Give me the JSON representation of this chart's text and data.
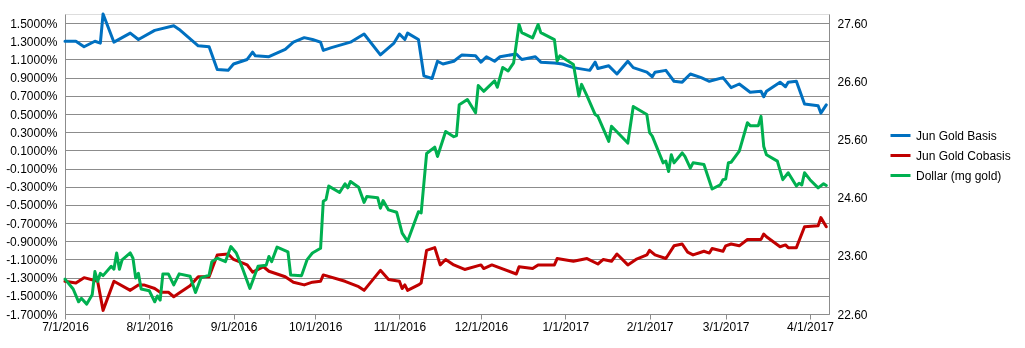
{
  "chart_data": {
    "type": "line",
    "legend": "right",
    "grid": "y",
    "xlim": [
      "2016-07-01",
      "2017-04-08"
    ],
    "xticks": [
      {
        "value": "2016-07-01",
        "label": "7/1/2016"
      },
      {
        "value": "2016-08-01",
        "label": "8/1/2016"
      },
      {
        "value": "2016-09-01",
        "label": "9/1/2016"
      },
      {
        "value": "2016-10-01",
        "label": "10/1/2016"
      },
      {
        "value": "2016-11-01",
        "label": "11/1/2016"
      },
      {
        "value": "2016-12-01",
        "label": "12/1/2016"
      },
      {
        "value": "2017-01-01",
        "label": "1/1/2017"
      },
      {
        "value": "2017-02-01",
        "label": "2/1/2017"
      },
      {
        "value": "2017-03-01",
        "label": "3/1/2017"
      },
      {
        "value": "2017-04-01",
        "label": "4/1/2017"
      }
    ],
    "ylim": [
      -1.7,
      1.6
    ],
    "yticks": [
      {
        "value": -1.7,
        "label": "-1.7000%"
      },
      {
        "value": -1.5,
        "label": "-1.5000%"
      },
      {
        "value": -1.3,
        "label": "-1.3000%"
      },
      {
        "value": -1.1,
        "label": "-1.1000%"
      },
      {
        "value": -0.9,
        "label": "-0.9000%"
      },
      {
        "value": -0.7,
        "label": "-0.7000%"
      },
      {
        "value": -0.5,
        "label": "-0.5000%"
      },
      {
        "value": -0.3,
        "label": "-0.3000%"
      },
      {
        "value": -0.1,
        "label": "-0.1000%"
      },
      {
        "value": 0.1,
        "label": "0.1000%"
      },
      {
        "value": 0.3,
        "label": "0.3000%"
      },
      {
        "value": 0.5,
        "label": "0.5000%"
      },
      {
        "value": 0.7,
        "label": "0.7000%"
      },
      {
        "value": 0.9,
        "label": "0.9000%"
      },
      {
        "value": 1.1,
        "label": "1.1000%"
      },
      {
        "value": 1.3,
        "label": "1.3000%"
      },
      {
        "value": 1.5,
        "label": "1.5000%"
      }
    ],
    "y2lim": [
      22.6,
      27.76
    ],
    "y2ticks": [
      {
        "value": 22.6,
        "label": "22.60"
      },
      {
        "value": 23.6,
        "label": "23.60"
      },
      {
        "value": 24.6,
        "label": "24.60"
      },
      {
        "value": 25.6,
        "label": "25.60"
      },
      {
        "value": 26.6,
        "label": "26.60"
      },
      {
        "value": 27.6,
        "label": "27.60"
      }
    ],
    "series": [
      {
        "name": "Jun Gold Basis",
        "color": "#0070c0",
        "axis": "y",
        "x": [
          "2016-07-01",
          "2016-07-05",
          "2016-07-08",
          "2016-07-12",
          "2016-07-14",
          "2016-07-15",
          "2016-07-19",
          "2016-07-25",
          "2016-07-28",
          "2016-08-03",
          "2016-08-10",
          "2016-08-12",
          "2016-08-19",
          "2016-08-23",
          "2016-08-26",
          "2016-08-30",
          "2016-09-01",
          "2016-09-06",
          "2016-09-08",
          "2016-09-09",
          "2016-09-14",
          "2016-09-20",
          "2016-09-23",
          "2016-09-27",
          "2016-09-30",
          "2016-10-03",
          "2016-10-04",
          "2016-10-07",
          "2016-10-14",
          "2016-10-19",
          "2016-10-25",
          "2016-10-30",
          "2016-11-01",
          "2016-11-03",
          "2016-11-04",
          "2016-11-08",
          "2016-11-10",
          "2016-11-13",
          "2016-11-15",
          "2016-11-17",
          "2016-11-21",
          "2016-11-24",
          "2016-11-29",
          "2016-12-01",
          "2016-12-03",
          "2016-12-06",
          "2016-12-08",
          "2016-12-14",
          "2016-12-16",
          "2016-12-21",
          "2016-12-23",
          "2016-12-28",
          "2016-12-31",
          "2017-01-04",
          "2017-01-10",
          "2017-01-12",
          "2017-01-13",
          "2017-01-17",
          "2017-01-20",
          "2017-01-24",
          "2017-01-26",
          "2017-01-31",
          "2017-02-02",
          "2017-02-03",
          "2017-02-07",
          "2017-02-10",
          "2017-02-13",
          "2017-02-16",
          "2017-02-20",
          "2017-02-23",
          "2017-02-28",
          "2017-03-03",
          "2017-03-06",
          "2017-03-10",
          "2017-03-14",
          "2017-03-15",
          "2017-03-16",
          "2017-03-21",
          "2017-03-23",
          "2017-03-24",
          "2017-03-27",
          "2017-03-30",
          "2017-04-04",
          "2017-04-05",
          "2017-04-07"
        ],
        "values": [
          1.3,
          1.3,
          1.24,
          1.3,
          1.28,
          1.6,
          1.29,
          1.39,
          1.32,
          1.42,
          1.47,
          1.43,
          1.25,
          1.24,
          0.99,
          0.98,
          1.05,
          1.1,
          1.18,
          1.14,
          1.13,
          1.21,
          1.29,
          1.34,
          1.32,
          1.29,
          1.2,
          1.23,
          1.29,
          1.38,
          1.15,
          1.28,
          1.38,
          1.32,
          1.39,
          1.32,
          0.92,
          0.89,
          1.08,
          1.05,
          1.08,
          1.15,
          1.14,
          1.07,
          1.13,
          1.08,
          1.13,
          1.16,
          1.1,
          1.13,
          1.07,
          1.06,
          1.05,
          1.01,
          0.98,
          1.07,
          1.0,
          1.03,
          0.94,
          1.08,
          1.01,
          0.96,
          0.91,
          0.96,
          0.98,
          0.86,
          0.85,
          0.94,
          0.9,
          0.86,
          0.9,
          0.79,
          0.83,
          0.74,
          0.75,
          0.69,
          0.75,
          0.85,
          0.8,
          0.85,
          0.86,
          0.61,
          0.59,
          0.51,
          0.6
        ]
      },
      {
        "name": "Jun Gold Cobasis",
        "color": "#c00000",
        "axis": "y",
        "x": [
          "2016-07-01",
          "2016-07-05",
          "2016-07-08",
          "2016-07-13",
          "2016-07-15",
          "2016-07-19",
          "2016-07-25",
          "2016-07-28",
          "2016-07-30",
          "2016-08-03",
          "2016-08-05",
          "2016-08-08",
          "2016-08-10",
          "2016-08-12",
          "2016-08-16",
          "2016-08-19",
          "2016-08-23",
          "2016-08-26",
          "2016-08-30",
          "2016-09-01",
          "2016-09-06",
          "2016-09-08",
          "2016-09-12",
          "2016-09-14",
          "2016-09-20",
          "2016-09-23",
          "2016-09-27",
          "2016-09-30",
          "2016-10-03",
          "2016-10-04",
          "2016-10-12",
          "2016-10-17",
          "2016-10-19",
          "2016-10-25",
          "2016-10-28",
          "2016-11-01",
          "2016-11-02",
          "2016-11-03",
          "2016-11-04",
          "2016-11-08",
          "2016-11-09",
          "2016-11-11",
          "2016-11-14",
          "2016-11-16",
          "2016-11-18",
          "2016-11-21",
          "2016-11-25",
          "2016-12-01",
          "2016-12-02",
          "2016-12-05",
          "2016-12-14",
          "2016-12-15",
          "2016-12-20",
          "2016-12-22",
          "2016-12-28",
          "2016-12-29",
          "2017-01-04",
          "2017-01-09",
          "2017-01-13",
          "2017-01-15",
          "2017-01-18",
          "2017-01-20",
          "2017-01-24",
          "2017-01-27",
          "2017-01-31",
          "2017-02-01",
          "2017-02-03",
          "2017-02-07",
          "2017-02-10",
          "2017-02-13",
          "2017-02-15",
          "2017-02-17",
          "2017-02-21",
          "2017-02-23",
          "2017-02-24",
          "2017-02-28",
          "2017-03-01",
          "2017-03-03",
          "2017-03-06",
          "2017-03-09",
          "2017-03-14",
          "2017-03-15",
          "2017-03-16",
          "2017-03-21",
          "2017-03-23",
          "2017-03-24",
          "2017-03-27",
          "2017-03-30",
          "2017-04-04",
          "2017-04-05",
          "2017-04-07"
        ],
        "values": [
          -1.34,
          -1.36,
          -1.3,
          -1.34,
          -1.66,
          -1.34,
          -1.44,
          -1.38,
          -1.38,
          -1.42,
          -1.46,
          -1.46,
          -1.51,
          -1.47,
          -1.39,
          -1.29,
          -1.29,
          -1.05,
          -1.04,
          -1.1,
          -1.16,
          -1.24,
          -1.18,
          -1.23,
          -1.29,
          -1.35,
          -1.38,
          -1.35,
          -1.34,
          -1.27,
          -1.34,
          -1.4,
          -1.44,
          -1.22,
          -1.32,
          -1.34,
          -1.42,
          -1.38,
          -1.44,
          -1.38,
          -1.36,
          -1.0,
          -0.97,
          -1.16,
          -1.1,
          -1.16,
          -1.21,
          -1.16,
          -1.2,
          -1.16,
          -1.26,
          -1.18,
          -1.2,
          -1.16,
          -1.16,
          -1.09,
          -1.12,
          -1.09,
          -1.15,
          -1.1,
          -1.12,
          -1.04,
          -1.16,
          -1.1,
          -1.05,
          -1.0,
          -1.05,
          -1.09,
          -0.95,
          -0.93,
          -1.02,
          -1.05,
          -1.01,
          -1.03,
          -0.98,
          -1.01,
          -0.95,
          -0.93,
          -0.95,
          -0.88,
          -0.88,
          -0.82,
          -0.85,
          -0.96,
          -0.94,
          -0.97,
          -0.97,
          -0.74,
          -0.73,
          -0.64,
          -0.74
        ]
      },
      {
        "name": "Dollar (mg gold)",
        "color": "#00b050",
        "axis": "y2",
        "x": [
          "2016-07-01",
          "2016-07-04",
          "2016-07-06",
          "2016-07-07",
          "2016-07-09",
          "2016-07-11",
          "2016-07-12",
          "2016-07-13",
          "2016-07-14",
          "2016-07-15",
          "2016-07-18",
          "2016-07-19",
          "2016-07-20",
          "2016-07-21",
          "2016-07-22",
          "2016-07-25",
          "2016-07-26",
          "2016-07-27",
          "2016-07-28",
          "2016-07-29",
          "2016-08-01",
          "2016-08-03",
          "2016-08-04",
          "2016-08-05",
          "2016-08-06",
          "2016-08-08",
          "2016-08-10",
          "2016-08-12",
          "2016-08-16",
          "2016-08-18",
          "2016-08-20",
          "2016-08-23",
          "2016-08-24",
          "2016-08-26",
          "2016-08-29",
          "2016-08-31",
          "2016-09-02",
          "2016-09-04",
          "2016-09-07",
          "2016-09-10",
          "2016-09-13",
          "2016-09-14",
          "2016-09-15",
          "2016-09-17",
          "2016-09-21",
          "2016-09-22",
          "2016-09-26",
          "2016-09-28",
          "2016-09-30",
          "2016-10-03",
          "2016-10-04",
          "2016-10-05",
          "2016-10-06",
          "2016-10-10",
          "2016-10-12",
          "2016-10-13",
          "2016-10-14",
          "2016-10-17",
          "2016-10-19",
          "2016-10-20",
          "2016-10-24",
          "2016-10-25",
          "2016-10-26",
          "2016-10-28",
          "2016-10-31",
          "2016-11-02",
          "2016-11-04",
          "2016-11-08",
          "2016-11-09",
          "2016-11-11",
          "2016-11-14",
          "2016-11-15",
          "2016-11-18",
          "2016-11-21",
          "2016-11-22",
          "2016-11-23",
          "2016-11-26",
          "2016-11-29",
          "2016-11-30",
          "2016-12-02",
          "2016-12-06",
          "2016-12-07",
          "2016-12-09",
          "2016-12-11",
          "2016-12-13",
          "2016-12-15",
          "2016-12-16",
          "2016-12-20",
          "2016-12-22",
          "2016-12-23",
          "2016-12-28",
          "2016-12-29",
          "2016-12-30",
          "2017-01-04",
          "2017-01-06",
          "2017-01-07",
          "2017-01-09",
          "2017-01-12",
          "2017-01-13",
          "2017-01-17",
          "2017-01-18",
          "2017-01-24",
          "2017-01-26",
          "2017-01-31",
          "2017-02-01",
          "2017-02-02",
          "2017-02-06",
          "2017-02-07",
          "2017-02-08",
          "2017-02-09",
          "2017-02-10",
          "2017-02-13",
          "2017-02-14",
          "2017-02-16",
          "2017-02-17",
          "2017-02-21",
          "2017-02-24",
          "2017-02-27",
          "2017-02-28",
          "2017-03-01",
          "2017-03-02",
          "2017-03-03",
          "2017-03-06",
          "2017-03-09",
          "2017-03-10",
          "2017-03-13",
          "2017-03-14",
          "2017-03-15",
          "2017-03-16",
          "2017-03-20",
          "2017-03-22",
          "2017-03-24",
          "2017-03-27",
          "2017-03-28",
          "2017-03-29",
          "2017-03-30",
          "2017-04-01",
          "2017-04-04",
          "2017-04-06",
          "2017-04-07"
        ],
        "values": [
          23.2,
          23.03,
          22.81,
          22.87,
          22.77,
          22.93,
          23.33,
          23.16,
          23.3,
          23.26,
          23.42,
          23.37,
          23.65,
          23.37,
          23.53,
          23.65,
          23.56,
          23.22,
          23.3,
          23.03,
          23.0,
          22.81,
          22.91,
          22.84,
          23.29,
          23.29,
          23.1,
          23.29,
          23.25,
          22.97,
          23.22,
          23.27,
          23.5,
          23.56,
          23.5,
          23.76,
          23.65,
          23.42,
          23.04,
          23.42,
          23.44,
          23.59,
          23.5,
          23.75,
          23.67,
          23.27,
          23.26,
          23.53,
          23.65,
          23.73,
          24.54,
          24.57,
          24.8,
          24.69,
          24.84,
          24.77,
          24.88,
          24.78,
          24.52,
          24.62,
          24.6,
          24.42,
          24.55,
          24.39,
          24.35,
          23.99,
          23.85,
          24.36,
          24.34,
          25.36,
          25.47,
          25.31,
          25.74,
          25.65,
          25.67,
          26.2,
          26.29,
          26.06,
          26.53,
          26.43,
          26.61,
          26.5,
          26.84,
          26.78,
          26.92,
          27.58,
          27.44,
          27.35,
          27.58,
          27.44,
          27.32,
          26.95,
          27.04,
          26.89,
          26.35,
          26.55,
          26.35,
          26.03,
          26.0,
          25.57,
          25.83,
          25.54,
          26.17,
          26.03,
          25.72,
          25.66,
          25.2,
          25.23,
          25.05,
          25.34,
          25.2,
          25.37,
          25.31,
          25.11,
          25.2,
          25.17,
          24.75,
          24.82,
          24.91,
          24.92,
          25.2,
          25.21,
          25.4,
          25.89,
          25.84,
          25.84,
          26.0,
          25.48,
          25.34,
          25.23,
          24.91,
          25.03,
          24.8,
          24.85,
          24.82,
          25.03,
          24.91,
          24.77,
          24.84,
          24.81
        ]
      }
    ]
  }
}
